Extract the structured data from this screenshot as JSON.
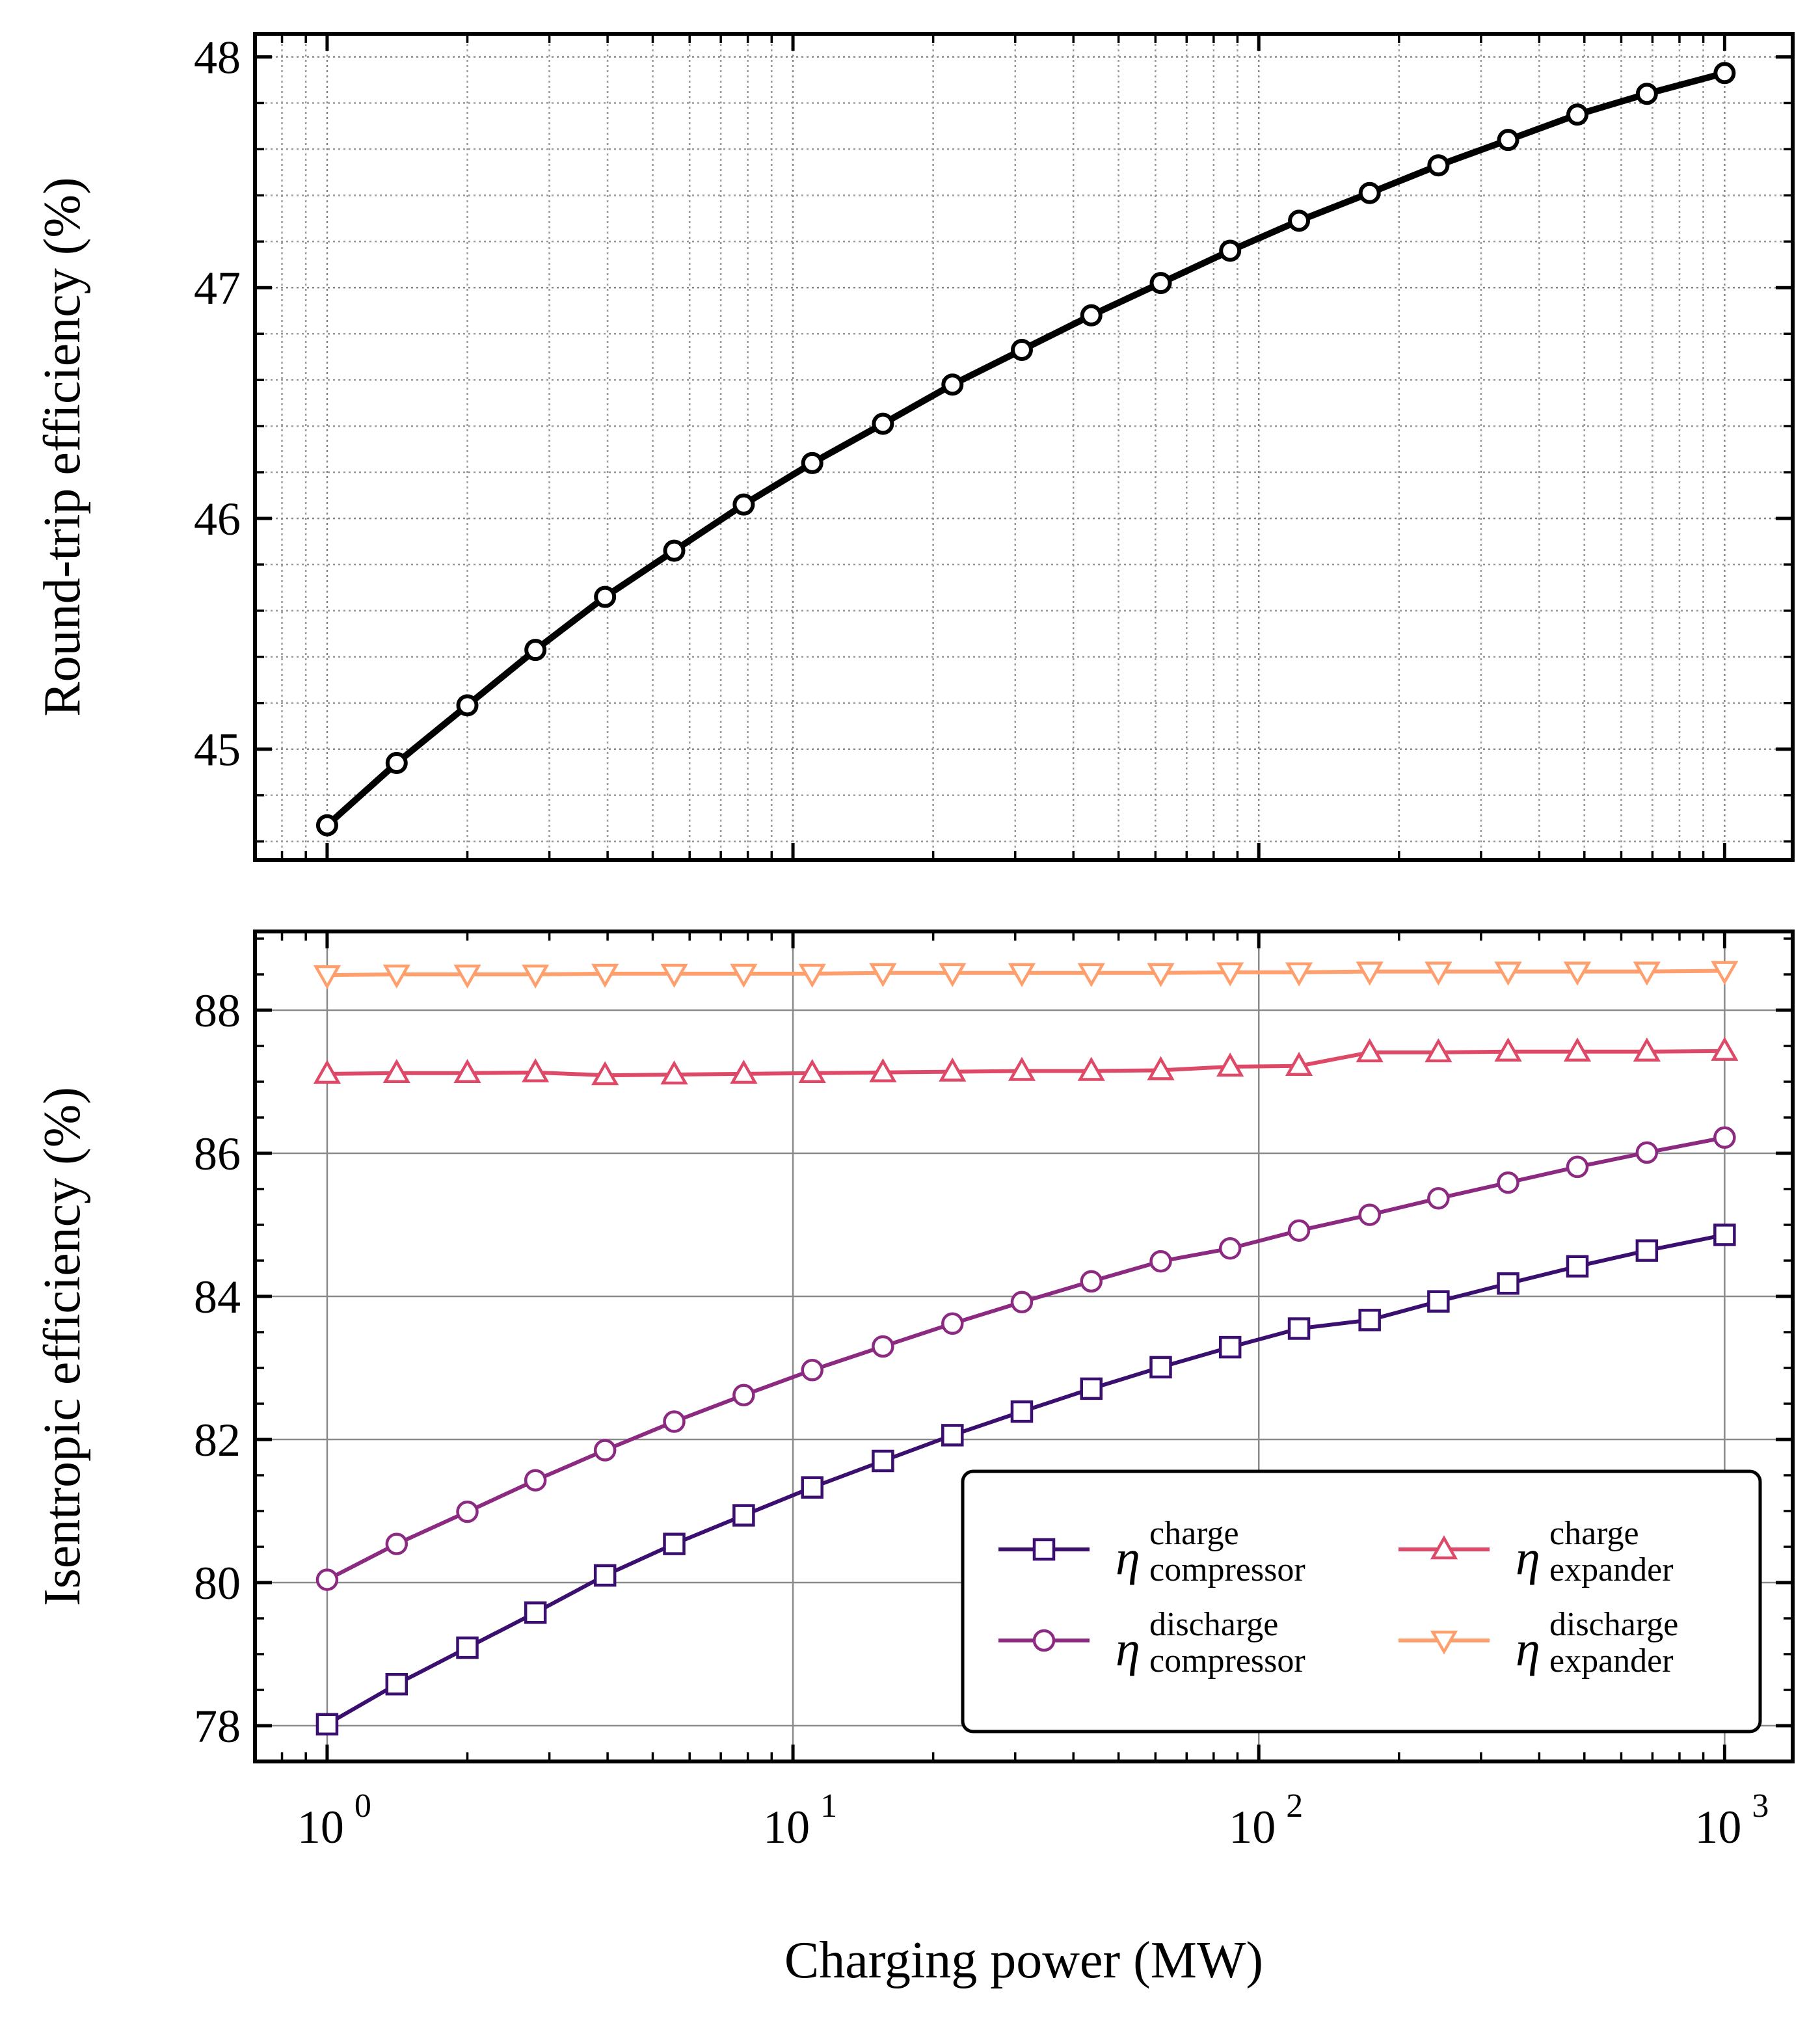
{
  "chart_data": [
    {
      "type": "line",
      "xscale": "log",
      "xlim": [
        0.7,
        1400
      ],
      "ylim": [
        44.52,
        48.1
      ],
      "ylabel": "Round-trip efficiency (%)",
      "yticks": [
        "45",
        "46",
        "47",
        "48"
      ],
      "ytick_values": [
        45,
        46,
        47,
        48
      ],
      "grid": "major and minor, dotted",
      "x": [
        1,
        1.41,
        2,
        2.8,
        3.95,
        5.56,
        7.84,
        11,
        15.6,
        22,
        31,
        43.7,
        61.6,
        86.8,
        122,
        173,
        243,
        343,
        483,
        681,
        1000
      ],
      "series": [
        {
          "color": "#000000",
          "marker": "circle",
          "values": [
            44.67,
            44.94,
            45.19,
            45.43,
            45.66,
            45.86,
            46.06,
            46.24,
            46.41,
            46.58,
            46.73,
            46.88,
            47.02,
            47.16,
            47.29,
            47.41,
            47.53,
            47.64,
            47.75,
            47.84,
            47.93
          ]
        }
      ]
    },
    {
      "type": "line",
      "xscale": "log",
      "xlim": [
        0.7,
        1400
      ],
      "ylim": [
        77.5,
        89.1
      ],
      "xlabel": "Charging power (MW)",
      "ylabel": "Isentropic efficiency (%)",
      "xticks_base": [
        "10",
        "10",
        "10",
        "10"
      ],
      "xticks_exp": [
        "0",
        "1",
        "2",
        "3"
      ],
      "xtick_values": [
        1,
        10,
        100,
        1000
      ],
      "yticks": [
        "78",
        "80",
        "82",
        "84",
        "86",
        "88"
      ],
      "ytick_values": [
        78,
        80,
        82,
        84,
        86,
        88
      ],
      "grid": "major, solid",
      "legend_position": "lower-right",
      "x": [
        1,
        1.41,
        2,
        2.8,
        3.95,
        5.56,
        7.84,
        11,
        15.6,
        22,
        31,
        43.7,
        61.6,
        86.8,
        122,
        173,
        243,
        343,
        483,
        681,
        1000
      ],
      "series": [
        {
          "symbol": "η",
          "sup": "charge",
          "sub": "compressor",
          "color": "#3b0f70",
          "marker": "square",
          "values": [
            78.02,
            78.58,
            79.09,
            79.58,
            80.1,
            80.54,
            80.94,
            81.33,
            81.7,
            82.06,
            82.39,
            82.71,
            83.01,
            83.29,
            83.55,
            83.67,
            83.93,
            84.18,
            84.42,
            84.64,
            84.86
          ]
        },
        {
          "symbol": "η",
          "sup": "discharge",
          "sub": "compressor",
          "color": "#8c2981",
          "marker": "circle",
          "values": [
            80.04,
            80.54,
            80.99,
            81.43,
            81.85,
            82.25,
            82.62,
            82.97,
            83.3,
            83.62,
            83.92,
            84.21,
            84.49,
            84.67,
            84.92,
            85.14,
            85.37,
            85.59,
            85.81,
            86.01,
            86.22
          ]
        },
        {
          "symbol": "η",
          "sup": "charge",
          "sub": "expander",
          "color": "#de4968",
          "marker": "triangle-up",
          "values": [
            87.11,
            87.12,
            87.12,
            87.13,
            87.09,
            87.1,
            87.11,
            87.12,
            87.13,
            87.14,
            87.15,
            87.15,
            87.16,
            87.21,
            87.22,
            87.41,
            87.41,
            87.42,
            87.42,
            87.42,
            87.43
          ]
        },
        {
          "symbol": "η",
          "sup": "discharge",
          "sub": "expander",
          "color": "#fe9f6d",
          "marker": "triangle-down",
          "values": [
            88.49,
            88.5,
            88.5,
            88.5,
            88.51,
            88.51,
            88.51,
            88.51,
            88.52,
            88.52,
            88.52,
            88.52,
            88.52,
            88.53,
            88.53,
            88.54,
            88.54,
            88.54,
            88.54,
            88.54,
            88.55
          ]
        }
      ]
    }
  ]
}
